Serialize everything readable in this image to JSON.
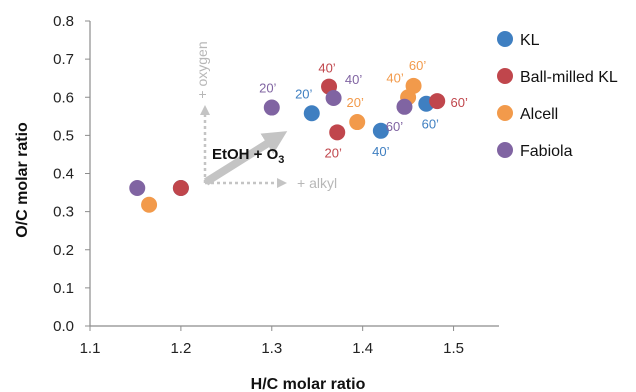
{
  "chart_data": {
    "type": "scatter",
    "xlabel": "H/C molar ratio",
    "ylabel": "O/C molar ratio",
    "xlim": [
      1.1,
      1.55
    ],
    "ylim": [
      0.0,
      0.8
    ],
    "x_ticks": [
      "1.1",
      "1.2",
      "1.3",
      "1.4",
      "1.5"
    ],
    "y_ticks": [
      "0.0",
      "0.1",
      "0.2",
      "0.3",
      "0.4",
      "0.5",
      "0.6",
      "0.7",
      "0.8"
    ],
    "legend_position": "right",
    "series": [
      {
        "name": "KL",
        "color": "#3f7fc1",
        "points": [
          {
            "x": 1.2,
            "y": 0.362,
            "label": ""
          },
          {
            "x": 1.344,
            "y": 0.558,
            "label": "20’"
          },
          {
            "x": 1.42,
            "y": 0.512,
            "label": "40’"
          },
          {
            "x": 1.47,
            "y": 0.583,
            "label": "60’"
          }
        ]
      },
      {
        "name": "Ball-milled KL",
        "color": "#c0464c",
        "points": [
          {
            "x": 1.2,
            "y": 0.362,
            "label": ""
          },
          {
            "x": 1.372,
            "y": 0.508,
            "label": "20’"
          },
          {
            "x": 1.363,
            "y": 0.628,
            "label": "40’"
          },
          {
            "x": 1.482,
            "y": 0.59,
            "label": "60’"
          }
        ]
      },
      {
        "name": "Alcell",
        "color": "#f29a4b",
        "points": [
          {
            "x": 1.165,
            "y": 0.318,
            "label": ""
          },
          {
            "x": 1.394,
            "y": 0.535,
            "label": "20’"
          },
          {
            "x": 1.45,
            "y": 0.6,
            "label": "40’"
          },
          {
            "x": 1.456,
            "y": 0.63,
            "label": "60’"
          }
        ]
      },
      {
        "name": "Fabiola",
        "color": "#8064a2",
        "points": [
          {
            "x": 1.152,
            "y": 0.362,
            "label": ""
          },
          {
            "x": 1.3,
            "y": 0.573,
            "label": "20’"
          },
          {
            "x": 1.368,
            "y": 0.598,
            "label": "40’"
          },
          {
            "x": 1.446,
            "y": 0.575,
            "label": "60’"
          }
        ]
      }
    ],
    "annotations": {
      "main": "EtOH + O",
      "main_sub": "3",
      "oxygen": "+ oxygen",
      "alkyl": "+ alkyl"
    }
  }
}
